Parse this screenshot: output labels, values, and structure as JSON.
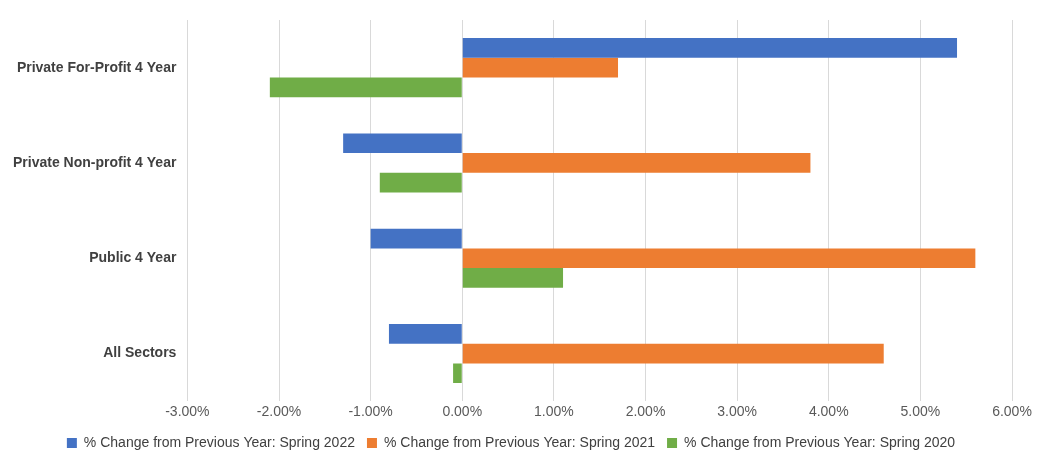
{
  "chart_data": {
    "type": "bar",
    "orientation": "horizontal",
    "categories": [
      "Private For-Profit 4 Year",
      "Private Non-profit 4 Year",
      "Public 4 Year",
      "All Sectors"
    ],
    "series": [
      {
        "name": "% Change from Previous Year: Spring 2022",
        "color": "#4472c4",
        "values": [
          5.4,
          -1.3,
          -1.0,
          -0.8
        ]
      },
      {
        "name": "% Change from Previous Year: Spring 2021",
        "color": "#ed7d31",
        "values": [
          1.7,
          3.8,
          5.6,
          4.6
        ]
      },
      {
        "name": "% Change from Previous Year: Spring 2020",
        "color": "#70ad47",
        "values": [
          -2.1,
          -0.9,
          1.1,
          -0.1
        ]
      }
    ],
    "xlim": [
      -3,
      6
    ],
    "xticks": [
      {
        "value": -3,
        "label": "-3.00%"
      },
      {
        "value": -2,
        "label": "-2.00%"
      },
      {
        "value": -1,
        "label": "-1.00%"
      },
      {
        "value": 0,
        "label": "0.00%"
      },
      {
        "value": 1,
        "label": "1.00%"
      },
      {
        "value": 2,
        "label": "2.00%"
      },
      {
        "value": 3,
        "label": "3.00%"
      },
      {
        "value": 4,
        "label": "4.00%"
      },
      {
        "value": 5,
        "label": "5.00%"
      },
      {
        "value": 6,
        "label": "6.00%"
      }
    ],
    "grid": true,
    "legend": "bottom"
  }
}
